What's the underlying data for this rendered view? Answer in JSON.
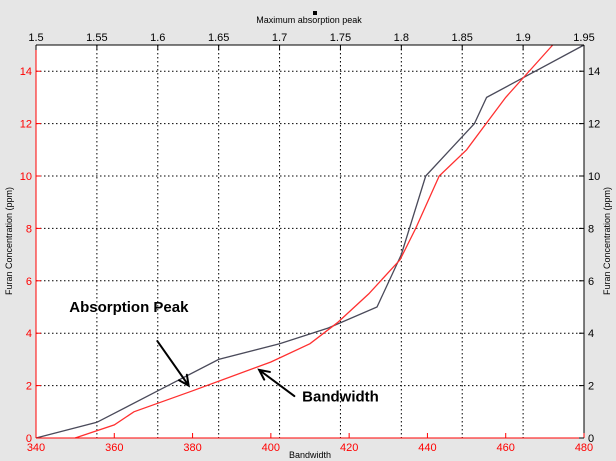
{
  "chart_data": {
    "type": "line",
    "grid": true,
    "colors": {
      "background": "#e6e6e6",
      "plot_area": "#ffffff",
      "grid": "#000000",
      "bottom_left_axis": "#ff0000",
      "top_right_axis": "#000000",
      "absorption_peak_series": "#4a4a5a",
      "bandwidth_series": "#ff3030"
    },
    "x_bottom": {
      "label": "Bandwidth",
      "range": [
        340,
        480
      ],
      "ticks": [
        340,
        360,
        380,
        400,
        420,
        440,
        460,
        480
      ],
      "tick_labels": [
        "340",
        "360",
        "380",
        "400",
        "420",
        "440",
        "460",
        "480"
      ]
    },
    "x_top": {
      "label": "Maximum absorption peak",
      "range": [
        1.5,
        1.95
      ],
      "ticks": [
        1.5,
        1.55,
        1.6,
        1.65,
        1.7,
        1.75,
        1.8,
        1.85,
        1.9,
        1.95
      ],
      "tick_labels": [
        "1.5",
        "1.55",
        "1.6",
        "1.65",
        "1.7",
        "1.75",
        "1.8",
        "1.85",
        "1.9",
        "1.95"
      ]
    },
    "y_left": {
      "label": "Furan Concentration (ppm)",
      "range": [
        0,
        15
      ],
      "ticks": [
        0,
        2,
        4,
        6,
        8,
        10,
        12,
        14
      ],
      "tick_labels": [
        "0",
        "2",
        "4",
        "6",
        "8",
        "10",
        "12",
        "14"
      ]
    },
    "y_right": {
      "label": "Furan Concentration (ppm)",
      "range": [
        0,
        15
      ],
      "ticks": [
        0,
        2,
        4,
        6,
        8,
        10,
        12,
        14
      ],
      "tick_labels": [
        "0",
        "2",
        "4",
        "6",
        "8",
        "10",
        "12",
        "14"
      ]
    },
    "series": [
      {
        "x_axis": "top",
        "y_axis": "right",
        "x": [
          1.5,
          1.55,
          1.6,
          1.65,
          1.7,
          1.74,
          1.78,
          1.8,
          1.82,
          1.84,
          1.86,
          1.87,
          1.89,
          1.95
        ],
        "y": [
          0,
          0.6,
          1.8,
          3.0,
          3.6,
          4.2,
          5.0,
          7.0,
          10.0,
          11.0,
          12.0,
          13.0,
          13.5,
          15.0
        ]
      },
      {
        "x_axis": "bottom",
        "y_axis": "left",
        "x": [
          350,
          360,
          365,
          380,
          400,
          410,
          417,
          425,
          433,
          437,
          443,
          450,
          455,
          460,
          472
        ],
        "y": [
          0,
          0.5,
          1.0,
          1.8,
          2.9,
          3.6,
          4.4,
          5.5,
          6.8,
          8.0,
          10.0,
          11.0,
          12.0,
          13.0,
          15.0
        ]
      }
    ],
    "annotations": [
      {
        "text": "Absorption Peak",
        "x_axis": "bottom",
        "y_axis": "left",
        "x": 348.5,
        "y": 4.8,
        "arrow_from": [
          371,
          3.7
        ],
        "arrow_to": [
          379,
          2.0
        ]
      },
      {
        "text": "Bandwidth",
        "x_axis": "bottom",
        "y_axis": "left",
        "x": 408,
        "y": 1.4,
        "arrow_from": [
          406,
          1.6
        ],
        "arrow_to": [
          397,
          2.6
        ]
      }
    ]
  }
}
